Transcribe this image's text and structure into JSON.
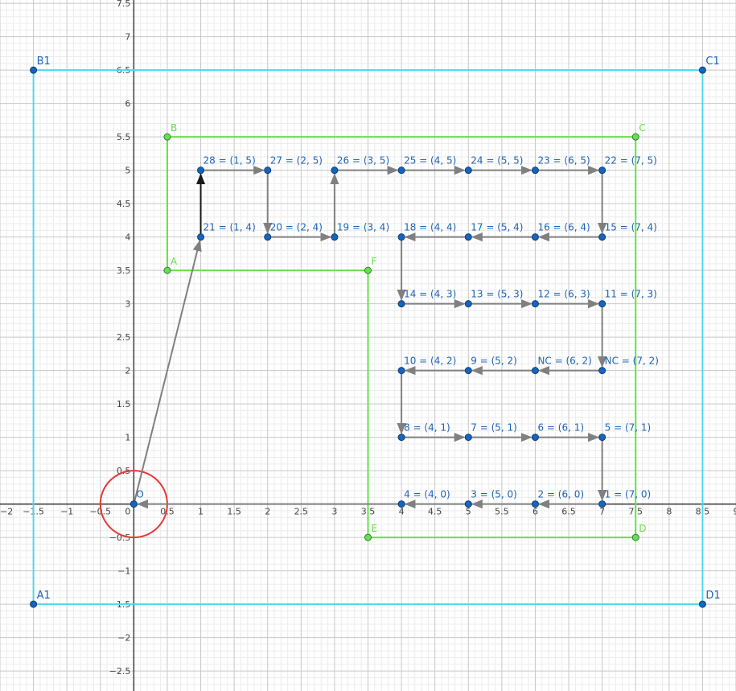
{
  "view": {
    "xmin": -2,
    "xmax": 9,
    "ymin": -2.8,
    "ymax": 7.55,
    "major_step": 0.5,
    "minor_divisions": 5
  },
  "axis_labels": {
    "x": [
      "−2",
      "−1.5",
      "−1",
      "−0.5",
      "0",
      "0.5",
      "1",
      "1.5",
      "2",
      "2.5",
      "3",
      "3.5",
      "4",
      "4.5",
      "5",
      "5.5",
      "6",
      "6.5",
      "7",
      "7.5",
      "8",
      "8.5",
      "9"
    ],
    "y": [
      "−2.5",
      "−2",
      "−1.5",
      "−1",
      "−0.5",
      "0.5",
      "1",
      "1.5",
      "2",
      "2.5",
      "3",
      "3.5",
      "4",
      "4.5",
      "5",
      "5.5",
      "6",
      "6.5",
      "7",
      "7.5"
    ]
  },
  "colors": {
    "cyan": "#4dd8f0",
    "green": "#66e04a",
    "point": "#1565c0",
    "point_label": "#1e63b8",
    "arrow": "#808080",
    "arrow_dark": "#1a1a1a",
    "circle": "#e53935"
  },
  "outer_rect": {
    "vertices": [
      {
        "name": "A1",
        "x": -1.5,
        "y": -1.5
      },
      {
        "name": "B1",
        "x": -1.5,
        "y": 6.5
      },
      {
        "name": "C1",
        "x": 8.5,
        "y": 6.5
      },
      {
        "name": "D1",
        "x": 8.5,
        "y": -1.5
      }
    ]
  },
  "inner_polygon": {
    "vertices": [
      {
        "name": "A",
        "x": 0.5,
        "y": 3.5
      },
      {
        "name": "B",
        "x": 0.5,
        "y": 5.5
      },
      {
        "name": "C",
        "x": 7.5,
        "y": 5.5
      },
      {
        "name": "D",
        "x": 7.5,
        "y": -0.5
      },
      {
        "name": "E",
        "x": 3.5,
        "y": -0.5
      },
      {
        "name": "F",
        "x": 3.5,
        "y": 3.5
      }
    ]
  },
  "origin": {
    "name": "O",
    "x": 0,
    "y": 0
  },
  "circle": {
    "cx": 0,
    "cy": 0,
    "r": 0.5
  },
  "points": [
    {
      "label": "1 = (7, 0)",
      "x": 7,
      "y": 0
    },
    {
      "label": "2 = (6, 0)",
      "x": 6,
      "y": 0
    },
    {
      "label": "3 = (5, 0)",
      "x": 5,
      "y": 0
    },
    {
      "label": "4 = (4, 0)",
      "x": 4,
      "y": 0
    },
    {
      "label": "5 = (7, 1)",
      "x": 7,
      "y": 1
    },
    {
      "label": "6 = (6, 1)",
      "x": 6,
      "y": 1
    },
    {
      "label": "7 = (5, 1)",
      "x": 5,
      "y": 1
    },
    {
      "label": "8 = (4, 1)",
      "x": 4,
      "y": 1
    },
    {
      "label": "NC = (7, 2)",
      "x": 7,
      "y": 2
    },
    {
      "label": "NC = (6, 2)",
      "x": 6,
      "y": 2
    },
    {
      "label": "9 = (5, 2)",
      "x": 5,
      "y": 2
    },
    {
      "label": "10 = (4, 2)",
      "x": 4,
      "y": 2
    },
    {
      "label": "11 = (7, 3)",
      "x": 7,
      "y": 3
    },
    {
      "label": "12 = (6, 3)",
      "x": 6,
      "y": 3
    },
    {
      "label": "13 = (5, 3)",
      "x": 5,
      "y": 3
    },
    {
      "label": "14 = (4, 3)",
      "x": 4,
      "y": 3
    },
    {
      "label": "15 = (7, 4)",
      "x": 7,
      "y": 4
    },
    {
      "label": "16 = (6, 4)",
      "x": 6,
      "y": 4
    },
    {
      "label": "17 = (5, 4)",
      "x": 5,
      "y": 4
    },
    {
      "label": "18 = (4, 4)",
      "x": 4,
      "y": 4
    },
    {
      "label": "19 = (3, 4)",
      "x": 3,
      "y": 4
    },
    {
      "label": "20 = (2, 4)",
      "x": 2,
      "y": 4
    },
    {
      "label": "21 = (1, 4)",
      "x": 1,
      "y": 4
    },
    {
      "label": "22 = (7, 5)",
      "x": 7,
      "y": 5
    },
    {
      "label": "23 = (6, 5)",
      "x": 6,
      "y": 5
    },
    {
      "label": "24 = (5, 5)",
      "x": 5,
      "y": 5
    },
    {
      "label": "25 = (4, 5)",
      "x": 4,
      "y": 5
    },
    {
      "label": "26 = (3, 5)",
      "x": 3,
      "y": 5
    },
    {
      "label": "27 = (2, 5)",
      "x": 2,
      "y": 5
    },
    {
      "label": "28 = (1, 5)",
      "x": 1,
      "y": 5
    }
  ],
  "arrows": [
    {
      "from": [
        0,
        0
      ],
      "to": [
        1,
        4
      ]
    },
    {
      "from": [
        1,
        4
      ],
      "to": [
        1,
        5
      ],
      "dark": true
    },
    {
      "from": [
        1,
        5
      ],
      "to": [
        2,
        5
      ]
    },
    {
      "from": [
        2,
        5
      ],
      "to": [
        2,
        4
      ]
    },
    {
      "from": [
        2,
        4
      ],
      "to": [
        3,
        4
      ]
    },
    {
      "from": [
        3,
        4
      ],
      "to": [
        3,
        5
      ]
    },
    {
      "from": [
        3,
        5
      ],
      "to": [
        4,
        5
      ]
    },
    {
      "from": [
        4,
        5
      ],
      "to": [
        5,
        5
      ]
    },
    {
      "from": [
        5,
        5
      ],
      "to": [
        6,
        5
      ]
    },
    {
      "from": [
        6,
        5
      ],
      "to": [
        7,
        5
      ]
    },
    {
      "from": [
        7,
        5
      ],
      "to": [
        7,
        4
      ]
    },
    {
      "from": [
        7,
        4
      ],
      "to": [
        6,
        4
      ]
    },
    {
      "from": [
        6,
        4
      ],
      "to": [
        5,
        4
      ]
    },
    {
      "from": [
        5,
        4
      ],
      "to": [
        4,
        4
      ]
    },
    {
      "from": [
        4,
        4
      ],
      "to": [
        4,
        3
      ]
    },
    {
      "from": [
        4,
        3
      ],
      "to": [
        5,
        3
      ]
    },
    {
      "from": [
        5,
        3
      ],
      "to": [
        6,
        3
      ]
    },
    {
      "from": [
        6,
        3
      ],
      "to": [
        7,
        3
      ]
    },
    {
      "from": [
        7,
        3
      ],
      "to": [
        7,
        2
      ]
    },
    {
      "from": [
        7,
        2
      ],
      "to": [
        6,
        2
      ]
    },
    {
      "from": [
        6,
        2
      ],
      "to": [
        5,
        2
      ]
    },
    {
      "from": [
        5,
        2
      ],
      "to": [
        4,
        2
      ]
    },
    {
      "from": [
        4,
        2
      ],
      "to": [
        4,
        1
      ]
    },
    {
      "from": [
        4,
        1
      ],
      "to": [
        5,
        1
      ]
    },
    {
      "from": [
        5,
        1
      ],
      "to": [
        6,
        1
      ]
    },
    {
      "from": [
        6,
        1
      ],
      "to": [
        7,
        1
      ]
    },
    {
      "from": [
        7,
        1
      ],
      "to": [
        7,
        0
      ]
    },
    {
      "from": [
        7,
        0
      ],
      "to": [
        6,
        0
      ]
    },
    {
      "from": [
        6,
        0
      ],
      "to": [
        5,
        0
      ]
    },
    {
      "from": [
        5,
        0
      ],
      "to": [
        4,
        0
      ]
    },
    {
      "from": [
        4,
        0
      ],
      "to": [
        0,
        0
      ]
    }
  ]
}
